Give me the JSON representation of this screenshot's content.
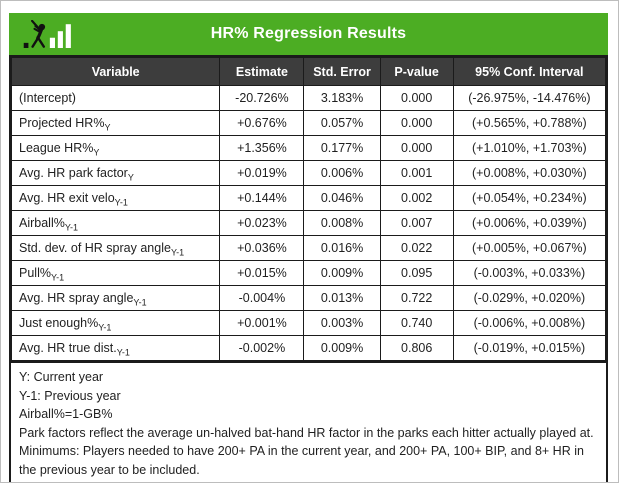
{
  "title_bar": {
    "title": "HR% Regression Results",
    "logo": "batter-with-bar-chart-logo"
  },
  "chart_data": {
    "type": "table",
    "title": "HR% Regression Results",
    "columns": [
      "Variable",
      "Estimate",
      "Std. Error",
      "P-value",
      "95% Conf. Interval"
    ],
    "rows": [
      {
        "variable": "(Intercept)",
        "subscript": "",
        "estimate": "-20.726%",
        "std_error": "3.183%",
        "p_value": "0.000",
        "conf_interval_95": "(-26.975%, -14.476%)"
      },
      {
        "variable": "Projected HR%",
        "subscript": "Y",
        "estimate": "+0.676%",
        "std_error": "0.057%",
        "p_value": "0.000",
        "conf_interval_95": "(+0.565%, +0.788%)"
      },
      {
        "variable": "League HR%",
        "subscript": "Y",
        "estimate": "+1.356%",
        "std_error": "0.177%",
        "p_value": "0.000",
        "conf_interval_95": "(+1.010%, +1.703%)"
      },
      {
        "variable": "Avg. HR park factor",
        "subscript": "Y",
        "estimate": "+0.019%",
        "std_error": "0.006%",
        "p_value": "0.001",
        "conf_interval_95": "(+0.008%, +0.030%)"
      },
      {
        "variable": "Avg. HR exit velo",
        "subscript": "Y-1",
        "estimate": "+0.144%",
        "std_error": "0.046%",
        "p_value": "0.002",
        "conf_interval_95": "(+0.054%, +0.234%)"
      },
      {
        "variable": "Airball%",
        "subscript": "Y-1",
        "estimate": "+0.023%",
        "std_error": "0.008%",
        "p_value": "0.007",
        "conf_interval_95": "(+0.006%, +0.039%)"
      },
      {
        "variable": "Std. dev. of HR spray angle",
        "subscript": "Y-1",
        "estimate": "+0.036%",
        "std_error": "0.016%",
        "p_value": "0.022",
        "conf_interval_95": "(+0.005%, +0.067%)"
      },
      {
        "variable": "Pull%",
        "subscript": "Y-1",
        "estimate": "+0.015%",
        "std_error": "0.009%",
        "p_value": "0.095",
        "conf_interval_95": "(-0.003%, +0.033%)"
      },
      {
        "variable": "Avg. HR spray angle",
        "subscript": "Y-1",
        "estimate": "-0.004%",
        "std_error": "0.013%",
        "p_value": "0.722",
        "conf_interval_95": "(-0.029%, +0.020%)"
      },
      {
        "variable": "Just enough%",
        "subscript": "Y-1",
        "estimate": "+0.001%",
        "std_error": "0.003%",
        "p_value": "0.740",
        "conf_interval_95": "(-0.006%, +0.008%)"
      },
      {
        "variable": "Avg. HR true dist.",
        "subscript": "Y-1",
        "estimate": "-0.002%",
        "std_error": "0.009%",
        "p_value": "0.806",
        "conf_interval_95": "(-0.019%, +0.015%)"
      }
    ],
    "footnotes": [
      "Y: Current year",
      "Y-1: Previous year",
      "Airball%=1-GB%",
      "Park factors reflect the average un-halved bat-hand HR factor in the parks each hitter actually played at.",
      "Minimums: Players needed to have 200+ PA in the current year, and 200+ PA, 100+ BIP, and 8+ HR in the previous year to be included."
    ]
  },
  "colors": {
    "accent_green": "#4cad23",
    "header_bg": "#3d3d3d",
    "table_border": "#1b1b1b",
    "frame_border": "#bdbdbd",
    "header_text": "#ffffff",
    "body_text": "#1f1f1f"
  }
}
